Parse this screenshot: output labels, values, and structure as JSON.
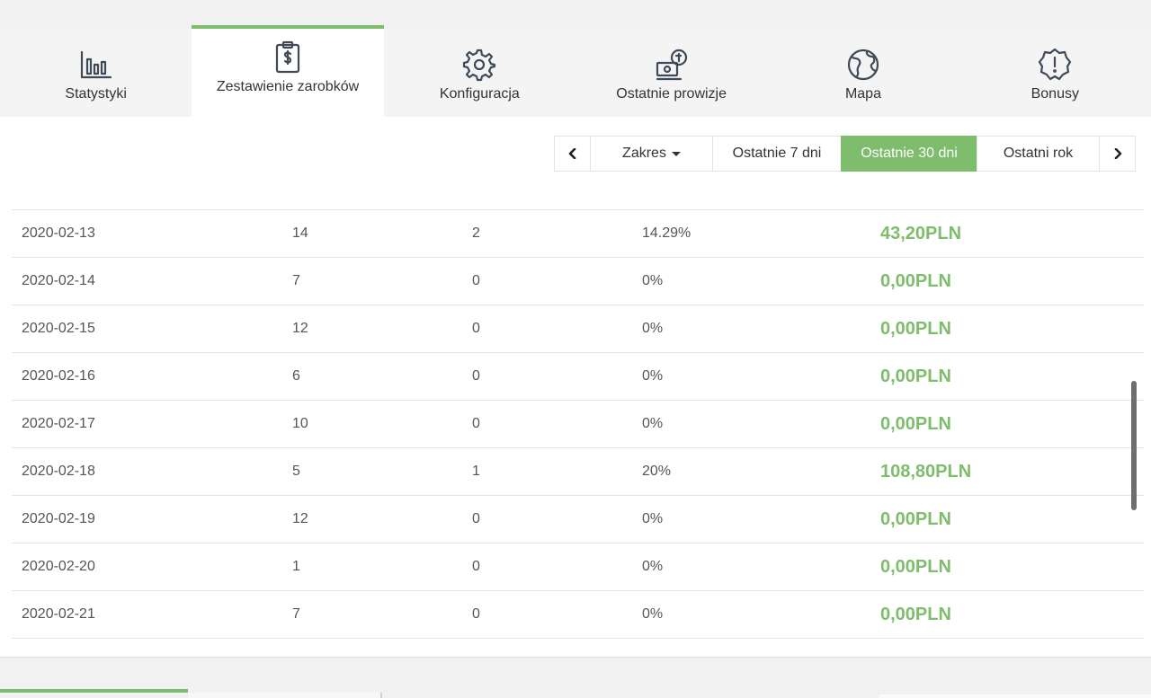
{
  "tabs": [
    {
      "label": "Statystyki",
      "icon": "bar-chart-icon"
    },
    {
      "label": "Zestawienie zarobków",
      "icon": "clipboard-dollar-icon",
      "active": true
    },
    {
      "label": "Konfiguracja",
      "icon": "gear-icon"
    },
    {
      "label": "Ostatnie prowizje",
      "icon": "cash-coins-icon"
    },
    {
      "label": "Mapa",
      "icon": "globe-icon"
    },
    {
      "label": "Bonusy",
      "icon": "badge-alert-icon"
    }
  ],
  "range": {
    "zakres_label": "Zakres",
    "last7_label": "Ostatnie 7 dni",
    "last30_label": "Ostatnie 30 dni",
    "last_year_label": "Ostatni rok",
    "selected": "Ostatnie 30 dni"
  },
  "rows": [
    {
      "date": "2020-02-13",
      "a": "14",
      "b": "2",
      "pct": "14.29%",
      "amount": "43,20PLN"
    },
    {
      "date": "2020-02-14",
      "a": "7",
      "b": "0",
      "pct": "0%",
      "amount": "0,00PLN"
    },
    {
      "date": "2020-02-15",
      "a": "12",
      "b": "0",
      "pct": "0%",
      "amount": "0,00PLN"
    },
    {
      "date": "2020-02-16",
      "a": "6",
      "b": "0",
      "pct": "0%",
      "amount": "0,00PLN"
    },
    {
      "date": "2020-02-17",
      "a": "10",
      "b": "0",
      "pct": "0%",
      "amount": "0,00PLN"
    },
    {
      "date": "2020-02-18",
      "a": "5",
      "b": "1",
      "pct": "20%",
      "amount": "108,80PLN"
    },
    {
      "date": "2020-02-19",
      "a": "12",
      "b": "0",
      "pct": "0%",
      "amount": "0,00PLN"
    },
    {
      "date": "2020-02-20",
      "a": "1",
      "b": "0",
      "pct": "0%",
      "amount": "0,00PLN"
    },
    {
      "date": "2020-02-21",
      "a": "7",
      "b": "0",
      "pct": "0%",
      "amount": "0,00PLN"
    }
  ],
  "colors": {
    "accent": "#7dbd6c",
    "icon": "#3f4a59",
    "tab_bg": "#f4f4f4"
  }
}
